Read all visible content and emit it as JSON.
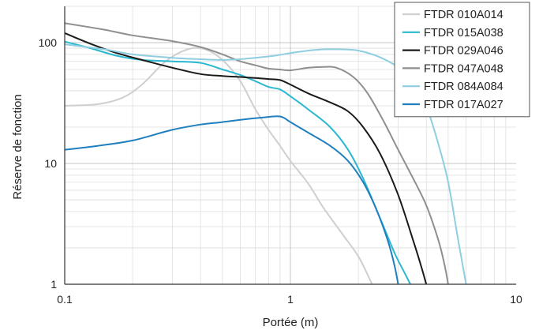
{
  "chart_data": {
    "type": "line",
    "title": "",
    "xlabel": "Portée (m)",
    "ylabel": "Réserve de fonction",
    "x_scale": "log",
    "y_scale": "log",
    "xlim": [
      0.1,
      10
    ],
    "ylim": [
      1,
      200
    ],
    "x_ticks": [
      "0.1",
      "1",
      "10"
    ],
    "y_ticks": [
      "1",
      "10",
      "100"
    ],
    "grid": true,
    "legend_position": "top-right",
    "series": [
      {
        "name": "FTDR 010A014",
        "color": "#cfcfcf",
        "points": [
          [
            0.1,
            30
          ],
          [
            0.14,
            31
          ],
          [
            0.18,
            35
          ],
          [
            0.22,
            45
          ],
          [
            0.28,
            70
          ],
          [
            0.35,
            88
          ],
          [
            0.42,
            88
          ],
          [
            0.5,
            72
          ],
          [
            0.6,
            48
          ],
          [
            0.7,
            28
          ],
          [
            0.8,
            19
          ],
          [
            0.9,
            14
          ],
          [
            1.0,
            10.5
          ],
          [
            1.2,
            6.8
          ],
          [
            1.4,
            4.3
          ],
          [
            1.7,
            2.6
          ],
          [
            2.0,
            1.7
          ],
          [
            2.3,
            1.0
          ]
        ]
      },
      {
        "name": "FTDR 015A038",
        "color": "#2ab8d0",
        "points": [
          [
            0.1,
            102
          ],
          [
            0.13,
            90
          ],
          [
            0.17,
            78
          ],
          [
            0.22,
            72
          ],
          [
            0.3,
            70
          ],
          [
            0.4,
            68
          ],
          [
            0.5,
            60
          ],
          [
            0.6,
            54
          ],
          [
            0.7,
            48
          ],
          [
            0.8,
            43
          ],
          [
            0.9,
            41
          ],
          [
            1.0,
            36
          ],
          [
            1.2,
            28
          ],
          [
            1.5,
            20
          ],
          [
            1.8,
            13
          ],
          [
            2.1,
            7.5
          ],
          [
            2.5,
            3.5
          ],
          [
            2.9,
            1.8
          ],
          [
            3.2,
            1.25
          ],
          [
            3.4,
            1.0
          ]
        ]
      },
      {
        "name": "FTDR 029A046",
        "color": "#1a1a1a",
        "points": [
          [
            0.1,
            120
          ],
          [
            0.13,
            98
          ],
          [
            0.17,
            82
          ],
          [
            0.22,
            72
          ],
          [
            0.3,
            62
          ],
          [
            0.4,
            55
          ],
          [
            0.5,
            53
          ],
          [
            0.6,
            52
          ],
          [
            0.7,
            51
          ],
          [
            0.8,
            50
          ],
          [
            0.9,
            49
          ],
          [
            1.0,
            45
          ],
          [
            1.2,
            38
          ],
          [
            1.5,
            32
          ],
          [
            1.8,
            27
          ],
          [
            2.1,
            20
          ],
          [
            2.5,
            12
          ],
          [
            3.0,
            5.5
          ],
          [
            3.5,
            2.3
          ],
          [
            3.8,
            1.4
          ],
          [
            4.0,
            1.0
          ]
        ]
      },
      {
        "name": "FTDR 047A048",
        "color": "#8f8f8f",
        "points": [
          [
            0.1,
            145
          ],
          [
            0.15,
            128
          ],
          [
            0.2,
            115
          ],
          [
            0.3,
            103
          ],
          [
            0.4,
            92
          ],
          [
            0.5,
            80
          ],
          [
            0.6,
            70
          ],
          [
            0.7,
            65
          ],
          [
            0.8,
            61
          ],
          [
            0.9,
            60
          ],
          [
            1.0,
            59
          ],
          [
            1.2,
            62
          ],
          [
            1.4,
            63
          ],
          [
            1.6,
            62
          ],
          [
            1.9,
            52
          ],
          [
            2.2,
            38
          ],
          [
            2.6,
            22
          ],
          [
            3.0,
            13
          ],
          [
            3.5,
            7.5
          ],
          [
            4.0,
            4.5
          ],
          [
            4.5,
            2.4
          ],
          [
            4.8,
            1.5
          ],
          [
            5.0,
            1.0
          ]
        ]
      },
      {
        "name": "FTDR 084A084",
        "color": "#8fcde0",
        "points": [
          [
            0.1,
            97
          ],
          [
            0.15,
            88
          ],
          [
            0.2,
            80
          ],
          [
            0.3,
            75
          ],
          [
            0.4,
            73
          ],
          [
            0.5,
            72
          ],
          [
            0.6,
            73
          ],
          [
            0.7,
            75
          ],
          [
            0.85,
            78
          ],
          [
            1.0,
            82
          ],
          [
            1.2,
            86
          ],
          [
            1.4,
            88
          ],
          [
            1.7,
            88
          ],
          [
            2.0,
            86
          ],
          [
            2.4,
            78
          ],
          [
            2.8,
            68
          ],
          [
            3.2,
            58
          ],
          [
            3.6,
            44
          ],
          [
            4.0,
            30
          ],
          [
            4.5,
            15
          ],
          [
            5.0,
            7
          ],
          [
            5.5,
            2.5
          ],
          [
            6.0,
            1.0
          ]
        ]
      },
      {
        "name": "FTDR 017A027",
        "color": "#1f7fbf",
        "points": [
          [
            0.1,
            13
          ],
          [
            0.14,
            14
          ],
          [
            0.2,
            15.5
          ],
          [
            0.3,
            19
          ],
          [
            0.4,
            21
          ],
          [
            0.5,
            22
          ],
          [
            0.6,
            23
          ],
          [
            0.75,
            24
          ],
          [
            0.9,
            24.5
          ],
          [
            1.0,
            22
          ],
          [
            1.2,
            18
          ],
          [
            1.5,
            14
          ],
          [
            1.8,
            10.5
          ],
          [
            2.1,
            7
          ],
          [
            2.4,
            4.2
          ],
          [
            2.7,
            2.3
          ],
          [
            2.9,
            1.4
          ],
          [
            3.0,
            1.0
          ]
        ]
      }
    ]
  }
}
